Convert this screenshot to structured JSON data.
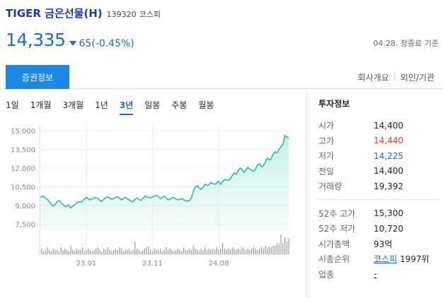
{
  "stock": {
    "name": "TIGER 금은선물(H)",
    "code": "139320",
    "market": "코스피",
    "price": "14,335",
    "change": "65(-0.45%)",
    "timestamp": "04.28. 장종료 기준"
  },
  "tabs": {
    "active": "증권정보",
    "company": "회사개요",
    "foreign": "외인/기관",
    "separator": "|"
  },
  "period_tabs": [
    "1일",
    "1개월",
    "3개월",
    "1년",
    "3년",
    "일봉",
    "주봉",
    "월봉"
  ],
  "period_active": "3년",
  "info": {
    "title": "투자정보",
    "rows": [
      {
        "label": "시가",
        "value": "14,400"
      },
      {
        "label": "고가",
        "value": "14,440"
      },
      {
        "label": "저가",
        "value": "14,225"
      },
      {
        "label": "전일",
        "value": "14,400"
      },
      {
        "label": "거래량",
        "value": "19,392"
      }
    ],
    "rows2": [
      {
        "label": "52주 고가",
        "value": "15,300"
      },
      {
        "label": "52주 저가",
        "value": "10,720"
      },
      {
        "label": "시가총액",
        "value": "93억"
      },
      {
        "label": "시총순위",
        "link": "코스피",
        "value": "1997위"
      },
      {
        "label": "업종",
        "value": "-"
      }
    ]
  },
  "colors": {
    "line": "#25bda4",
    "area": "#c8efe8",
    "down": "#1f67d2",
    "up": "#e24141",
    "tab_active_bg": "#1e88e5"
  },
  "chart_data": {
    "type": "area",
    "yticks": [
      "15,000",
      "13,500",
      "12,000",
      "10,500",
      "9,000",
      "7,500"
    ],
    "ytick_values": [
      15000,
      13500,
      12000,
      10500,
      9000,
      7500
    ],
    "xticks": [
      "23.01",
      "23.11",
      "24.08"
    ],
    "xtick_positions": [
      24,
      58,
      92
    ],
    "ylim": [
      6900,
      15400
    ],
    "xlim": [
      0,
      128
    ],
    "values": [
      9650,
      9700,
      9750,
      9600,
      9500,
      9300,
      9050,
      8950,
      9100,
      9300,
      9400,
      9250,
      9050,
      8950,
      8900,
      9050,
      8800,
      8950,
      9050,
      9200,
      9300,
      9250,
      9350,
      9500,
      9650,
      9550,
      9450,
      9500,
      9650,
      9600,
      9550,
      9400,
      9350,
      9500,
      9650,
      9700,
      9600,
      9500,
      9550,
      9650,
      9700,
      9600,
      9450,
      9550,
      9650,
      9550,
      9450,
      9350,
      9300,
      9500,
      9600,
      9500,
      9400,
      9550,
      9750,
      9700,
      9650,
      9600,
      9700,
      9750,
      9800,
      9700,
      9550,
      9650,
      9750,
      9600,
      9450,
      9500,
      9600,
      9650,
      9500,
      9450,
      9500,
      9550,
      9450,
      9400,
      9350,
      9400,
      9600,
      10200,
      10500,
      10600,
      10400,
      10300,
      10450,
      10700,
      10600,
      10650,
      10850,
      10750,
      10700,
      10800,
      10950,
      10700,
      10900,
      11100,
      11050,
      11000,
      11150,
      11400,
      11600,
      11500,
      11800,
      12000,
      11900,
      11650,
      11850,
      12050,
      11900,
      11800,
      11750,
      11950,
      12250,
      12350,
      12100,
      12200,
      12500,
      12800,
      12650,
      12750,
      13100,
      13300,
      13200,
      13500,
      13700,
      13900,
      14600,
      14500,
      14400
    ],
    "volumes": [
      3,
      4,
      2,
      3,
      5,
      3,
      2,
      4,
      3,
      3,
      2,
      5,
      3,
      4,
      3,
      2,
      6,
      3,
      2,
      4,
      3,
      3,
      5,
      2,
      3,
      4,
      3,
      2,
      3,
      4,
      5,
      3,
      2,
      4,
      3,
      5,
      3,
      2,
      3,
      4,
      3,
      5,
      4,
      2,
      3,
      3,
      4,
      2,
      3,
      9,
      4,
      3,
      2,
      3,
      4,
      5,
      6,
      3,
      2,
      4,
      3,
      3,
      4,
      2,
      3,
      5,
      3,
      4,
      3,
      2,
      3,
      4,
      3,
      2,
      5,
      3,
      3,
      4,
      3,
      6,
      4,
      3,
      2,
      4,
      3,
      5,
      3,
      4,
      3,
      4,
      3,
      5,
      3,
      4,
      8,
      4,
      3,
      4,
      3,
      5,
      4,
      3,
      4,
      3,
      5,
      4,
      3,
      4,
      3,
      4,
      5,
      4,
      3,
      4,
      5,
      4,
      6,
      4,
      5,
      5,
      6,
      6,
      8,
      7,
      14,
      8,
      12,
      9,
      11
    ]
  }
}
